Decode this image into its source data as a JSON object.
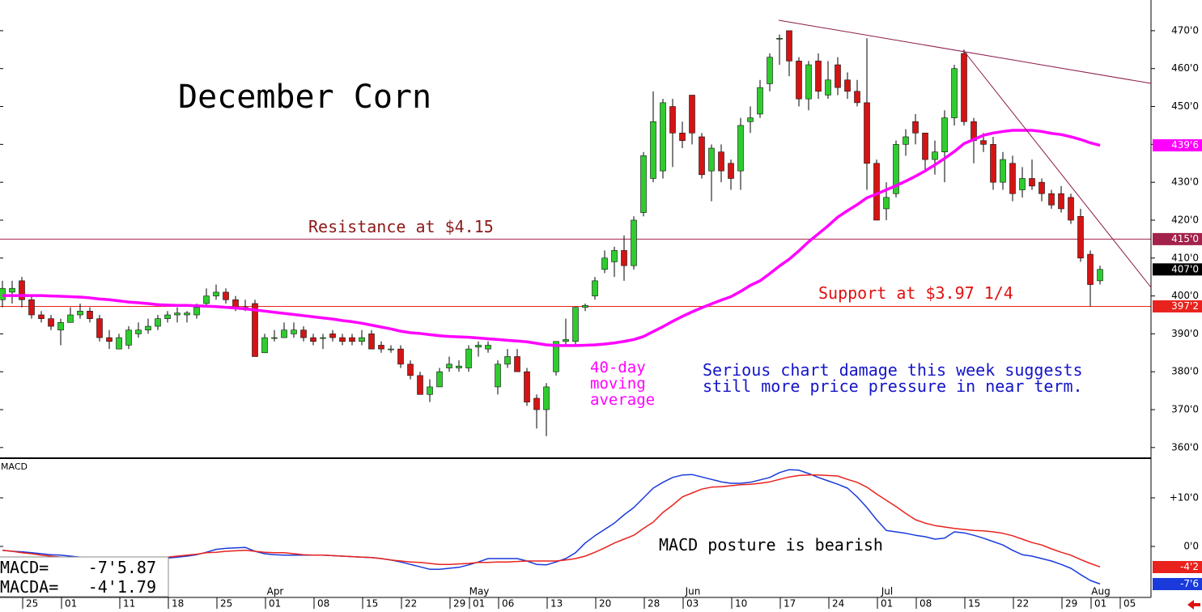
{
  "chart_data": [
    {
      "type": "candlestick",
      "title": "December Corn",
      "up_color": "#2fcc2f",
      "down_color": "#d41414",
      "ylim": [
        357.4,
        478.1
      ],
      "yticks": [
        {
          "value": 360,
          "label": "360'0"
        },
        {
          "value": 370,
          "label": "370'0"
        },
        {
          "value": 380,
          "label": "380'0"
        },
        {
          "value": 390,
          "label": "390'0"
        },
        {
          "value": 400,
          "label": "400'0"
        },
        {
          "value": 410,
          "label": "410'0"
        },
        {
          "value": 420,
          "label": "420'0"
        },
        {
          "value": 430,
          "label": "430'0"
        },
        {
          "value": 440,
          "label": "440'0"
        },
        {
          "value": 450,
          "label": "450'0"
        },
        {
          "value": 460,
          "label": "460'0"
        },
        {
          "value": 470,
          "label": "470'0"
        }
      ],
      "categories": [
        null,
        null,
        "25",
        null,
        null,
        null,
        "01",
        null,
        null,
        null,
        null,
        null,
        "11",
        null,
        null,
        null,
        null,
        "18",
        null,
        null,
        null,
        null,
        "25",
        null,
        null,
        null,
        null,
        "01",
        null,
        null,
        null,
        null,
        "08",
        null,
        null,
        null,
        null,
        "15",
        null,
        null,
        null,
        "22",
        null,
        null,
        null,
        null,
        "29",
        null,
        "01",
        null,
        null,
        "06",
        null,
        null,
        null,
        null,
        "13",
        null,
        null,
        null,
        null,
        "20",
        null,
        null,
        null,
        null,
        "28",
        null,
        null,
        null,
        "03",
        null,
        null,
        null,
        null,
        "10",
        null,
        null,
        null,
        null,
        "17",
        null,
        null,
        null,
        null,
        "24",
        null,
        null,
        null,
        null,
        "01",
        null,
        null,
        null,
        "08",
        null,
        null,
        null,
        null,
        "15",
        null,
        null,
        null,
        null,
        "22",
        null,
        null,
        null,
        null,
        "29",
        null,
        null,
        "01",
        null,
        null,
        "05"
      ],
      "months": [
        null,
        null,
        null,
        null,
        null,
        null,
        null,
        null,
        null,
        null,
        null,
        null,
        null,
        null,
        null,
        null,
        null,
        null,
        null,
        null,
        null,
        null,
        null,
        null,
        null,
        null,
        null,
        "Apr",
        null,
        null,
        null,
        null,
        null,
        null,
        null,
        null,
        null,
        null,
        null,
        null,
        null,
        null,
        null,
        null,
        null,
        null,
        null,
        null,
        "May",
        null,
        null,
        null,
        null,
        null,
        null,
        null,
        null,
        null,
        null,
        null,
        null,
        null,
        null,
        null,
        null,
        null,
        null,
        null,
        null,
        null,
        "Jun",
        null,
        null,
        null,
        null,
        null,
        null,
        null,
        null,
        null,
        null,
        null,
        null,
        null,
        null,
        null,
        null,
        null,
        null,
        null,
        "Jul",
        null,
        null,
        null,
        null,
        null,
        null,
        null,
        null,
        null,
        null,
        null,
        null,
        null,
        null,
        null,
        null,
        null,
        null,
        null,
        null,
        null,
        "Aug",
        null,
        null,
        null
      ],
      "ohlc": {
        "open": [
          399,
          401,
          404,
          399,
          395,
          394,
          391,
          393,
          395,
          396,
          394,
          389,
          386,
          387,
          390,
          391,
          392,
          394,
          395,
          395,
          395,
          398,
          400,
          401,
          399,
          397,
          398,
          385,
          389,
          389,
          390,
          391,
          389,
          389,
          390,
          389,
          389,
          388,
          390,
          387,
          386,
          386,
          382,
          379,
          374,
          376,
          381,
          381,
          381,
          386.5,
          386,
          376,
          382,
          384,
          380,
          373,
          370,
          380,
          388,
          388,
          397,
          400,
          407,
          409,
          412,
          408,
          422,
          431,
          433,
          450,
          443,
          453,
          442,
          433,
          438,
          435,
          433,
          446,
          448,
          456,
          468,
          470,
          462,
          452,
          462,
          453,
          461,
          457,
          454,
          451,
          435,
          423,
          427,
          440,
          446,
          443,
          436,
          438,
          447,
          464,
          446,
          441,
          440,
          430,
          435,
          428,
          431,
          430,
          427,
          427,
          426,
          421,
          411,
          404,
          null,
          null
        ],
        "high": [
          404,
          404,
          405,
          400,
          396,
          395,
          394,
          397,
          398,
          397,
          395,
          391,
          390,
          392,
          393,
          394,
          395,
          396,
          397,
          396,
          398,
          402,
          403,
          402,
          400,
          399,
          399,
          390,
          391,
          393,
          393,
          392,
          390,
          390,
          391,
          390,
          390,
          391,
          391,
          388,
          387,
          387,
          383,
          380,
          378,
          381,
          384,
          383,
          387,
          388,
          388,
          383,
          386,
          386,
          381,
          374,
          377,
          388,
          394,
          397,
          398,
          405,
          412,
          413,
          416,
          421,
          438,
          454,
          452,
          452,
          446,
          453,
          443,
          440,
          440,
          436,
          447,
          450,
          457,
          464,
          469,
          470,
          463,
          462,
          464,
          462,
          463,
          459,
          457,
          468,
          436,
          430,
          441,
          444,
          448,
          443,
          441,
          449,
          461,
          465,
          447,
          443,
          442,
          438,
          437,
          434,
          436,
          431,
          428,
          429,
          427,
          423,
          412,
          408,
          null,
          null
        ],
        "low": [
          397,
          398,
          397,
          394,
          393,
          391,
          387,
          393,
          394,
          393,
          388,
          386,
          386,
          386,
          389,
          390,
          391,
          393,
          393,
          393,
          394,
          397,
          399,
          398,
          396,
          396,
          384,
          386,
          388,
          389,
          389,
          388,
          387,
          386,
          388,
          387,
          387,
          387,
          386,
          385,
          385,
          381,
          378,
          374,
          372,
          376,
          380,
          380,
          380,
          384,
          385,
          374,
          381,
          380,
          371,
          365,
          363,
          379,
          387,
          387,
          396,
          399,
          406,
          405,
          404,
          407,
          421,
          430,
          431,
          434,
          439,
          440,
          431,
          425,
          430,
          428,
          428,
          443,
          447,
          454,
          461,
          458,
          450,
          449,
          452,
          452,
          453,
          452,
          450,
          428,
          420,
          420,
          426,
          437,
          440,
          433,
          432,
          430,
          445,
          445,
          435,
          438,
          428,
          428,
          425,
          426,
          428,
          425,
          423,
          422,
          419,
          409,
          397.25,
          403,
          null,
          null
        ],
        "close": [
          402,
          402,
          399,
          395,
          394,
          392,
          393,
          395,
          396,
          394,
          389,
          388,
          389,
          391,
          391,
          392,
          394,
          395,
          395.5,
          395.5,
          397,
          400,
          401,
          399,
          397,
          396.5,
          384,
          389,
          389,
          391,
          391,
          389,
          388,
          389,
          389,
          388,
          388,
          389,
          386,
          386,
          386,
          382,
          379,
          374,
          376,
          380,
          382,
          381.5,
          386,
          387,
          387,
          382,
          384,
          380,
          372,
          370,
          376,
          388,
          388.5,
          397,
          397.5,
          404,
          410,
          412,
          408,
          420,
          437,
          446,
          451,
          443,
          441,
          443,
          432,
          439,
          433,
          431,
          445,
          447,
          455,
          463,
          468,
          462,
          452,
          461,
          454,
          457,
          455,
          454,
          451,
          435,
          420,
          426,
          440,
          442,
          443,
          436,
          438,
          447,
          460,
          446,
          441,
          440,
          430,
          436,
          427,
          431,
          429,
          427,
          424,
          423,
          420,
          410,
          403,
          407,
          null,
          null
        ]
      },
      "ma": {
        "color": "#ff00ff",
        "values": [
          400.1,
          400.1,
          400.1,
          400.1,
          400.1,
          400.0,
          399.9,
          399.8,
          399.7,
          399.5,
          399.2,
          399.0,
          398.7,
          398.4,
          398.2,
          398.0,
          397.7,
          397.6,
          397.5,
          397.5,
          397.4,
          397.3,
          397.2,
          397.0,
          396.8,
          396.6,
          396.3,
          396.0,
          395.7,
          395.4,
          395.1,
          394.8,
          394.5,
          394.2,
          393.9,
          393.5,
          393.2,
          392.8,
          392.3,
          391.8,
          391.3,
          390.7,
          390.3,
          390.1,
          389.8,
          389.5,
          389.3,
          389.2,
          389.1,
          388.9,
          388.7,
          388.5,
          388.3,
          388.1,
          387.9,
          387.5,
          387.1,
          386.9,
          386.9,
          386.9,
          387.0,
          387.1,
          387.3,
          387.6,
          388.0,
          388.5,
          389.3,
          390.6,
          391.9,
          393.3,
          394.6,
          395.8,
          396.9,
          397.9,
          398.9,
          399.8,
          401.2,
          402.8,
          404.0,
          405.9,
          407.9,
          409.7,
          411.9,
          414.3,
          416.4,
          418.5,
          420.8,
          422.5,
          424.1,
          425.9,
          426.9,
          428.0,
          429.1,
          430.3,
          431.6,
          433.0,
          434.6,
          436.3,
          438.1,
          440.2,
          441.3,
          442.4,
          443.0,
          443.4,
          443.7,
          443.7,
          443.7,
          443.4,
          442.9,
          442.6,
          442.0,
          441.3,
          440.4,
          439.75,
          null,
          null
        ]
      },
      "value_tags": [
        {
          "value": 439.75,
          "label": "439'6",
          "color": "#ff00ff",
          "line": false
        },
        {
          "value": 415,
          "label": "415'0",
          "color": "#a3224b",
          "line": true
        },
        {
          "value": 407,
          "label": "407'0",
          "color": "#000000",
          "line": false
        },
        {
          "value": 397.25,
          "label": "397'2",
          "color": "#e8231e",
          "line": true
        }
      ],
      "annotations": {
        "resistance": "Resistance at $4.15",
        "support": "Support at $3.97 1/4",
        "ma_label": [
          "40-day",
          "moving",
          "average"
        ],
        "comment": [
          "Serious chart damage this week suggests",
          "still more price pressure in near term."
        ]
      }
    },
    {
      "type": "line",
      "title": "MACD",
      "ylim": [
        -10.5,
        18
      ],
      "yticks": [
        {
          "value": 10,
          "label": "+10'0"
        },
        {
          "value": 0,
          "label": "0'0"
        }
      ],
      "series": [
        {
          "color": "#1a3adb",
          "values": [
            -0.8,
            -1.0,
            -1.1,
            -1.3,
            -1.5,
            -1.7,
            -1.8,
            -2.0,
            -2.2,
            -2.3,
            -2.3,
            -2.4,
            -2.5,
            -2.5,
            -2.5,
            -2.5,
            -2.5,
            -2.4,
            -2.2,
            -2.0,
            -1.7,
            -1.2,
            -0.6,
            -0.4,
            -0.3,
            -0.2,
            -1.0,
            -1.5,
            -1.7,
            -1.8,
            -1.8,
            -1.8,
            -1.8,
            -1.8,
            -1.9,
            -2.0,
            -2.1,
            -2.2,
            -2.3,
            -2.5,
            -2.8,
            -3.2,
            -3.7,
            -4.2,
            -4.7,
            -4.7,
            -4.5,
            -4.3,
            -3.8,
            -3.2,
            -2.5,
            -2.5,
            -2.5,
            -2.5,
            -3.0,
            -3.7,
            -3.8,
            -3.2,
            -2.5,
            -1.3,
            0.7,
            2.2,
            3.5,
            4.8,
            6.5,
            8.0,
            10.0,
            12.0,
            13.2,
            14.2,
            14.7,
            14.8,
            14.3,
            13.8,
            13.3,
            13.0,
            13.0,
            13.2,
            13.7,
            14.2,
            15.2,
            15.8,
            15.7,
            15.0,
            14.2,
            13.5,
            12.8,
            12.0,
            10.2,
            8.0,
            5.5,
            3.3,
            3.0,
            2.7,
            2.3,
            2.0,
            1.5,
            1.7,
            3.0,
            2.8,
            2.3,
            1.7,
            1.0,
            0.3,
            -0.8,
            -1.7,
            -2.0,
            -2.5,
            -3.0,
            -3.7,
            -4.5,
            -5.8,
            -7.0,
            -7.73,
            null,
            null
          ]
        },
        {
          "color": "#e8231e",
          "values": [
            -0.8,
            -1.0,
            -1.3,
            -1.5,
            -1.8,
            -2.0,
            -2.2,
            -2.3,
            -2.3,
            -2.3,
            -2.3,
            -2.3,
            -2.3,
            -2.3,
            -2.3,
            -2.3,
            -2.3,
            -2.2,
            -2.0,
            -1.8,
            -1.6,
            -1.3,
            -1.2,
            -1.0,
            -0.9,
            -0.8,
            -1.0,
            -1.2,
            -1.3,
            -1.3,
            -1.5,
            -1.7,
            -1.8,
            -1.8,
            -1.9,
            -2.0,
            -2.1,
            -2.2,
            -2.3,
            -2.5,
            -2.8,
            -3.0,
            -3.2,
            -3.3,
            -3.5,
            -3.7,
            -3.7,
            -3.6,
            -3.5,
            -3.3,
            -3.3,
            -3.2,
            -3.2,
            -3.1,
            -3.0,
            -3.0,
            -3.0,
            -3.0,
            -2.8,
            -2.5,
            -2.0,
            -1.2,
            -0.3,
            0.7,
            1.5,
            2.3,
            3.7,
            5.0,
            7.0,
            8.5,
            10.2,
            11.0,
            11.8,
            12.2,
            12.3,
            12.5,
            12.7,
            12.8,
            13.0,
            13.3,
            13.8,
            14.3,
            14.6,
            14.7,
            14.7,
            14.6,
            14.5,
            13.8,
            13.2,
            12.2,
            10.8,
            9.5,
            8.2,
            6.8,
            5.5,
            4.8,
            4.3,
            4.0,
            3.7,
            3.5,
            3.3,
            3.2,
            3.0,
            2.7,
            2.2,
            1.5,
            0.8,
            0.3,
            -0.5,
            -1.2,
            -1.8,
            -2.7,
            -3.5,
            -4.22,
            null,
            null
          ]
        }
      ],
      "value_tags": [
        {
          "value": -4.25,
          "label": "-4'2",
          "color": "#e8231e"
        },
        {
          "value": -7.75,
          "label": "-7'6",
          "color": "#1a3adb"
        }
      ],
      "readout": [
        {
          "label": "MACD=",
          "value": "-7'5.87"
        },
        {
          "label": "MACDA=",
          "value": "-4'1.79"
        }
      ],
      "annotation": "MACD posture is bearish"
    }
  ]
}
